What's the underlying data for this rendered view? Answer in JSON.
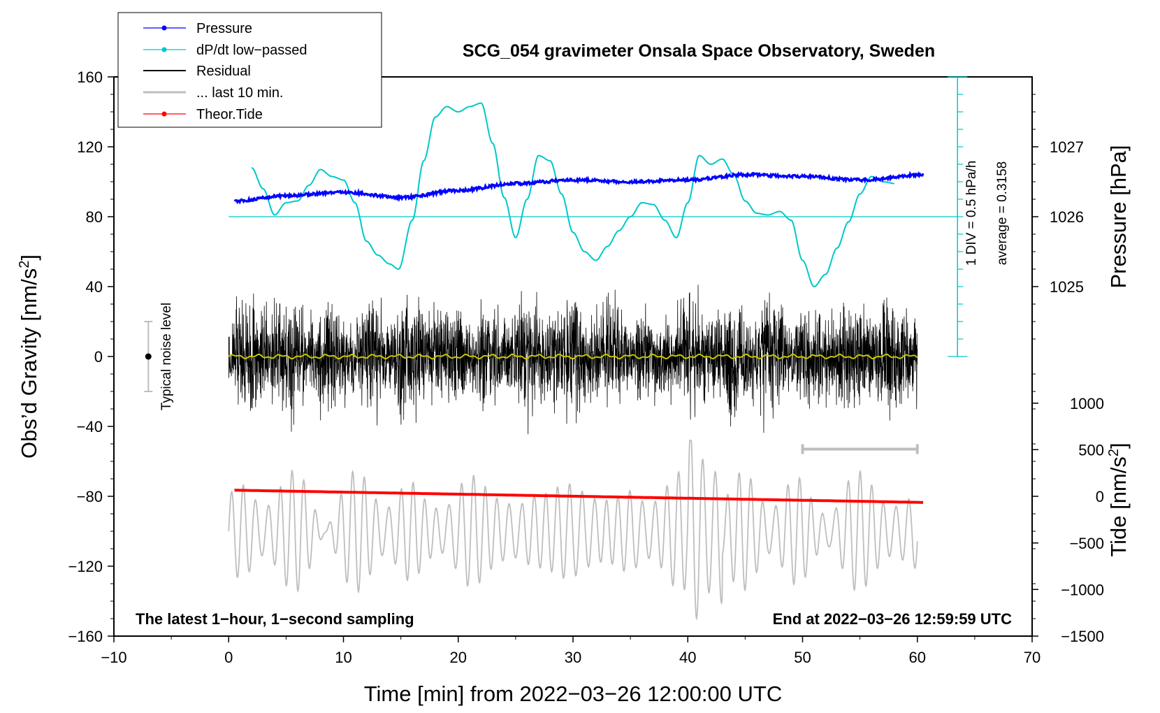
{
  "chart_data": {
    "type": "line",
    "title": "SCG_054 gravimeter Onsala Space Observatory, Sweden",
    "xlabel": "Time [min] from 2022−03−26 12:00:00 UTC",
    "ylabel": "Obs’d Gravity [nm/s",
    "ylabel_sup": "2",
    "ylabel_end": "]",
    "right_label_pressure": "Pressure [hPa]",
    "right_label_tide": "Tide [nm/s",
    "right_label_tide_sup": "2",
    "right_label_tide_end": "]",
    "xlim": [
      -10,
      70
    ],
    "ylim": [
      -160,
      160
    ],
    "x_ticks": [
      -10,
      0,
      10,
      20,
      30,
      40,
      50,
      60,
      70
    ],
    "x_tick_labels": [
      "−10",
      "0",
      "10",
      "20",
      "30",
      "40",
      "50",
      "60",
      "70"
    ],
    "y_ticks": [
      -160,
      -120,
      -80,
      -40,
      0,
      40,
      80,
      120,
      160
    ],
    "y_tick_labels": [
      "−160",
      "−120",
      "−80",
      "−40",
      "0",
      "40",
      "80",
      "120",
      "160"
    ],
    "pressure_axis": {
      "ticks": [
        1025,
        1026,
        1027
      ],
      "tick_labels": [
        "1025",
        "1026",
        "1027"
      ],
      "gravity_equiv": [
        40,
        80,
        120
      ],
      "baseline_gravity": 80
    },
    "tide_axis": {
      "ticks": [
        -1500,
        -1000,
        -500,
        0,
        500,
        1000
      ],
      "tick_labels": [
        "−1500",
        "−1000",
        "−500",
        "0",
        "500",
        "1000"
      ],
      "gravity_equiv": [
        -160,
        -133.3,
        -106.7,
        -80,
        -53.3,
        -26.7
      ]
    },
    "dpdt_scale": {
      "label_div": "1 DIV = 0.5 hPa/h",
      "label_avg": "average = 0.3158",
      "gravity_range": [
        0,
        160
      ],
      "divisions": 16
    },
    "legend": [
      {
        "name": "Pressure",
        "color": "#0000ff",
        "marker": "dot"
      },
      {
        "name": "dP/dt low−passed",
        "color": "#00c8c8",
        "marker": "dot"
      },
      {
        "name": "Residual",
        "color": "#000000",
        "marker": "none"
      },
      {
        "name": "... last 10 min.",
        "color": "#bebebe",
        "marker": "none"
      },
      {
        "name": "Theor.Tide",
        "color": "#ff0000",
        "marker": "dot"
      }
    ],
    "annotations": {
      "left": "The latest 1−hour, 1−second sampling",
      "right": "End at 2022−03−26 12:59:59 UTC",
      "noise": "Typical noise level"
    },
    "noise_bar": {
      "x": -7,
      "y": 0,
      "half_range": 20
    },
    "last10_bar": {
      "x": [
        50,
        60
      ],
      "y": -53
    },
    "series": [
      {
        "name": "Pressure",
        "color": "#0000ff",
        "x": [
          0.5,
          5,
          10,
          15,
          20,
          25,
          30,
          35,
          40,
          45,
          50,
          55,
          60.5
        ],
        "y": [
          89,
          92,
          94,
          91,
          95,
          99,
          101,
          100,
          101,
          104,
          103,
          101,
          104
        ]
      },
      {
        "name": "dP/dt low−passed",
        "color": "#00c8c8",
        "x": [
          2,
          3,
          4,
          5,
          6,
          7,
          8,
          9,
          10,
          11,
          12,
          13,
          14,
          14.8,
          16,
          17,
          18,
          19,
          20,
          21,
          22,
          23,
          24,
          25,
          26,
          27,
          28,
          29,
          30,
          31,
          32,
          33,
          34,
          35,
          36,
          37,
          38,
          39,
          40,
          41,
          42,
          43,
          44,
          45,
          46,
          47,
          48,
          49,
          50,
          51,
          52,
          53,
          54,
          55,
          56,
          57,
          58
        ],
        "y": [
          108,
          96,
          81,
          88,
          89,
          98,
          107,
          103,
          101,
          88,
          66,
          58,
          53,
          50,
          78,
          112,
          137,
          143,
          140,
          143,
          145,
          122,
          91,
          68,
          90,
          115,
          112,
          93,
          71,
          60,
          55,
          63,
          72,
          80,
          88,
          87,
          78,
          68,
          88,
          115,
          110,
          113,
          104,
          89,
          82,
          81,
          83,
          78,
          55,
          40,
          47,
          62,
          77,
          93,
          103,
          100,
          99
        ]
      },
      {
        "name": "Residual",
        "color": "#000000",
        "x_range": [
          0,
          60
        ],
        "amplitude": 26,
        "peak_amplitude": 75
      },
      {
        "name": "Residual smoothed",
        "color": "#c8c800",
        "x_range": [
          0,
          60
        ],
        "value": 0
      },
      {
        "name": "... last 10 min.",
        "color": "#bebebe",
        "x_range": [
          0,
          60
        ],
        "center": -100,
        "amplitude": 25
      },
      {
        "name": "Theor.Tide",
        "color": "#ff0000",
        "x": [
          0.5,
          60.5
        ],
        "y": [
          -76.5,
          -83.5
        ]
      }
    ]
  }
}
